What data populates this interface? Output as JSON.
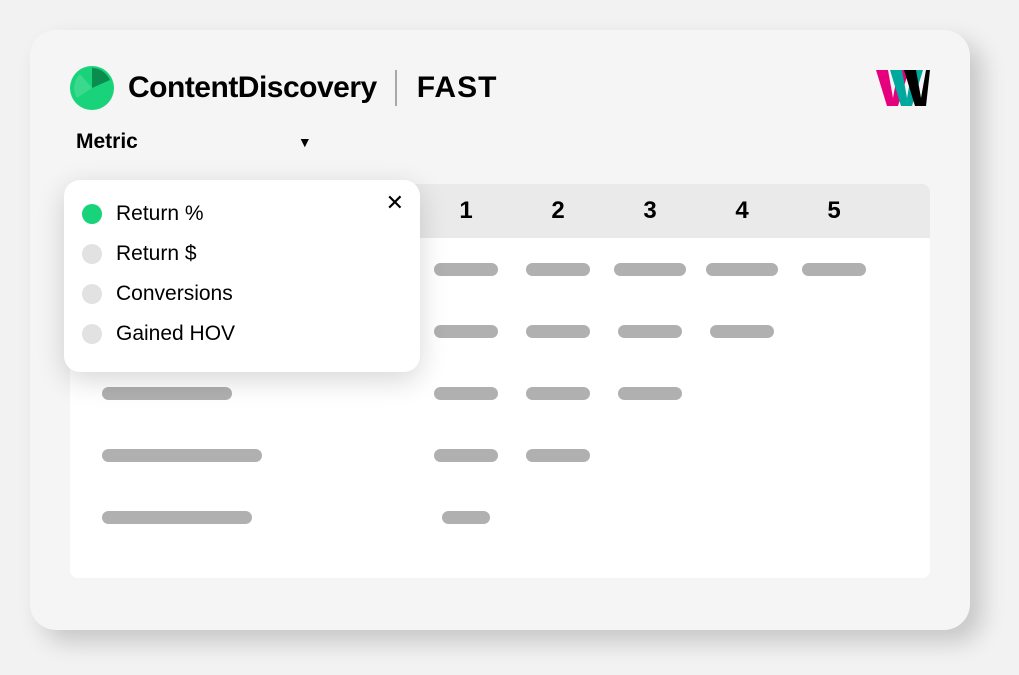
{
  "colors": {
    "brand_green": "#18d37a",
    "brand_green_dark": "#0a8c4f",
    "pill": "#b0b0b0",
    "dot_inactive": "#e2e2e2",
    "dot_active": "#18d37a",
    "bg_window": "#f5f5f5",
    "bg_table": "#ffffff",
    "bg_thead": "#eaeaea",
    "wn_pink": "#e6007e",
    "wn_teal": "#00a99d",
    "wn_black": "#000000"
  },
  "header": {
    "title": "ContentDiscovery",
    "subtitle": "FAST"
  },
  "metric": {
    "label": "Metric",
    "options": [
      {
        "label": "Return %",
        "selected": true
      },
      {
        "label": "Return $",
        "selected": false
      },
      {
        "label": "Conversions",
        "selected": false
      },
      {
        "label": "Gained HOV",
        "selected": false
      }
    ]
  },
  "table": {
    "columns": [
      "1",
      "2",
      "3",
      "4",
      "5"
    ],
    "label_col_width": 340,
    "num_col_width": 92,
    "rows": [
      {
        "label_width": 140,
        "cells": [
          64,
          64,
          72,
          72,
          64
        ]
      },
      {
        "label_width": 170,
        "cells": [
          64,
          64,
          64,
          64,
          0
        ]
      },
      {
        "label_width": 130,
        "cells": [
          64,
          64,
          64,
          0,
          0
        ]
      },
      {
        "label_width": 160,
        "cells": [
          64,
          64,
          0,
          0,
          0
        ]
      },
      {
        "label_width": 150,
        "cells": [
          48,
          0,
          0,
          0,
          0
        ]
      }
    ]
  }
}
